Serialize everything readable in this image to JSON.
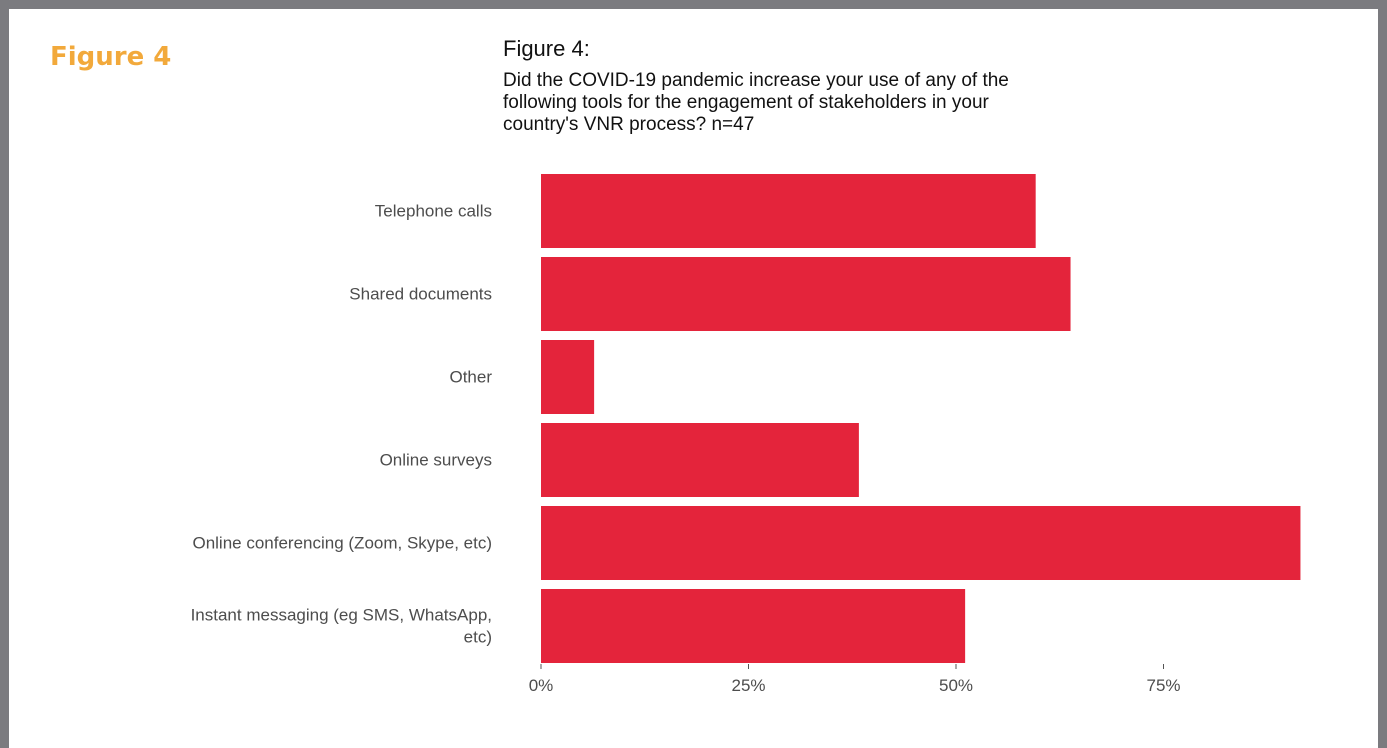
{
  "figure_label": "Figure 4",
  "chart_data": {
    "type": "bar",
    "orientation": "horizontal",
    "title": "Figure 4:",
    "subtitle": "Did the COVID-19 pandemic increase your use of any of the\nfollowing tools for the engagement of stakeholders in your\ncountry's VNR process? n=47",
    "categories": [
      "Telephone calls",
      "Shared documents",
      "Other",
      "Online surveys",
      "Online conferencing (Zoom, Skype, etc)",
      "Instant messaging (eg SMS, WhatsApp,\netc)"
    ],
    "values": [
      59.6,
      63.8,
      6.4,
      38.3,
      91.5,
      51.1
    ],
    "unit": "%",
    "xlim": [
      0,
      100
    ],
    "xticks": [
      0,
      25,
      50,
      75
    ],
    "xtick_labels": [
      "0%",
      "25%",
      "50%",
      "75%"
    ],
    "grid": false,
    "bar_color": "#e4243b",
    "frame_color": "#7b7b7f",
    "figure_label_color": "#f2a93b"
  }
}
